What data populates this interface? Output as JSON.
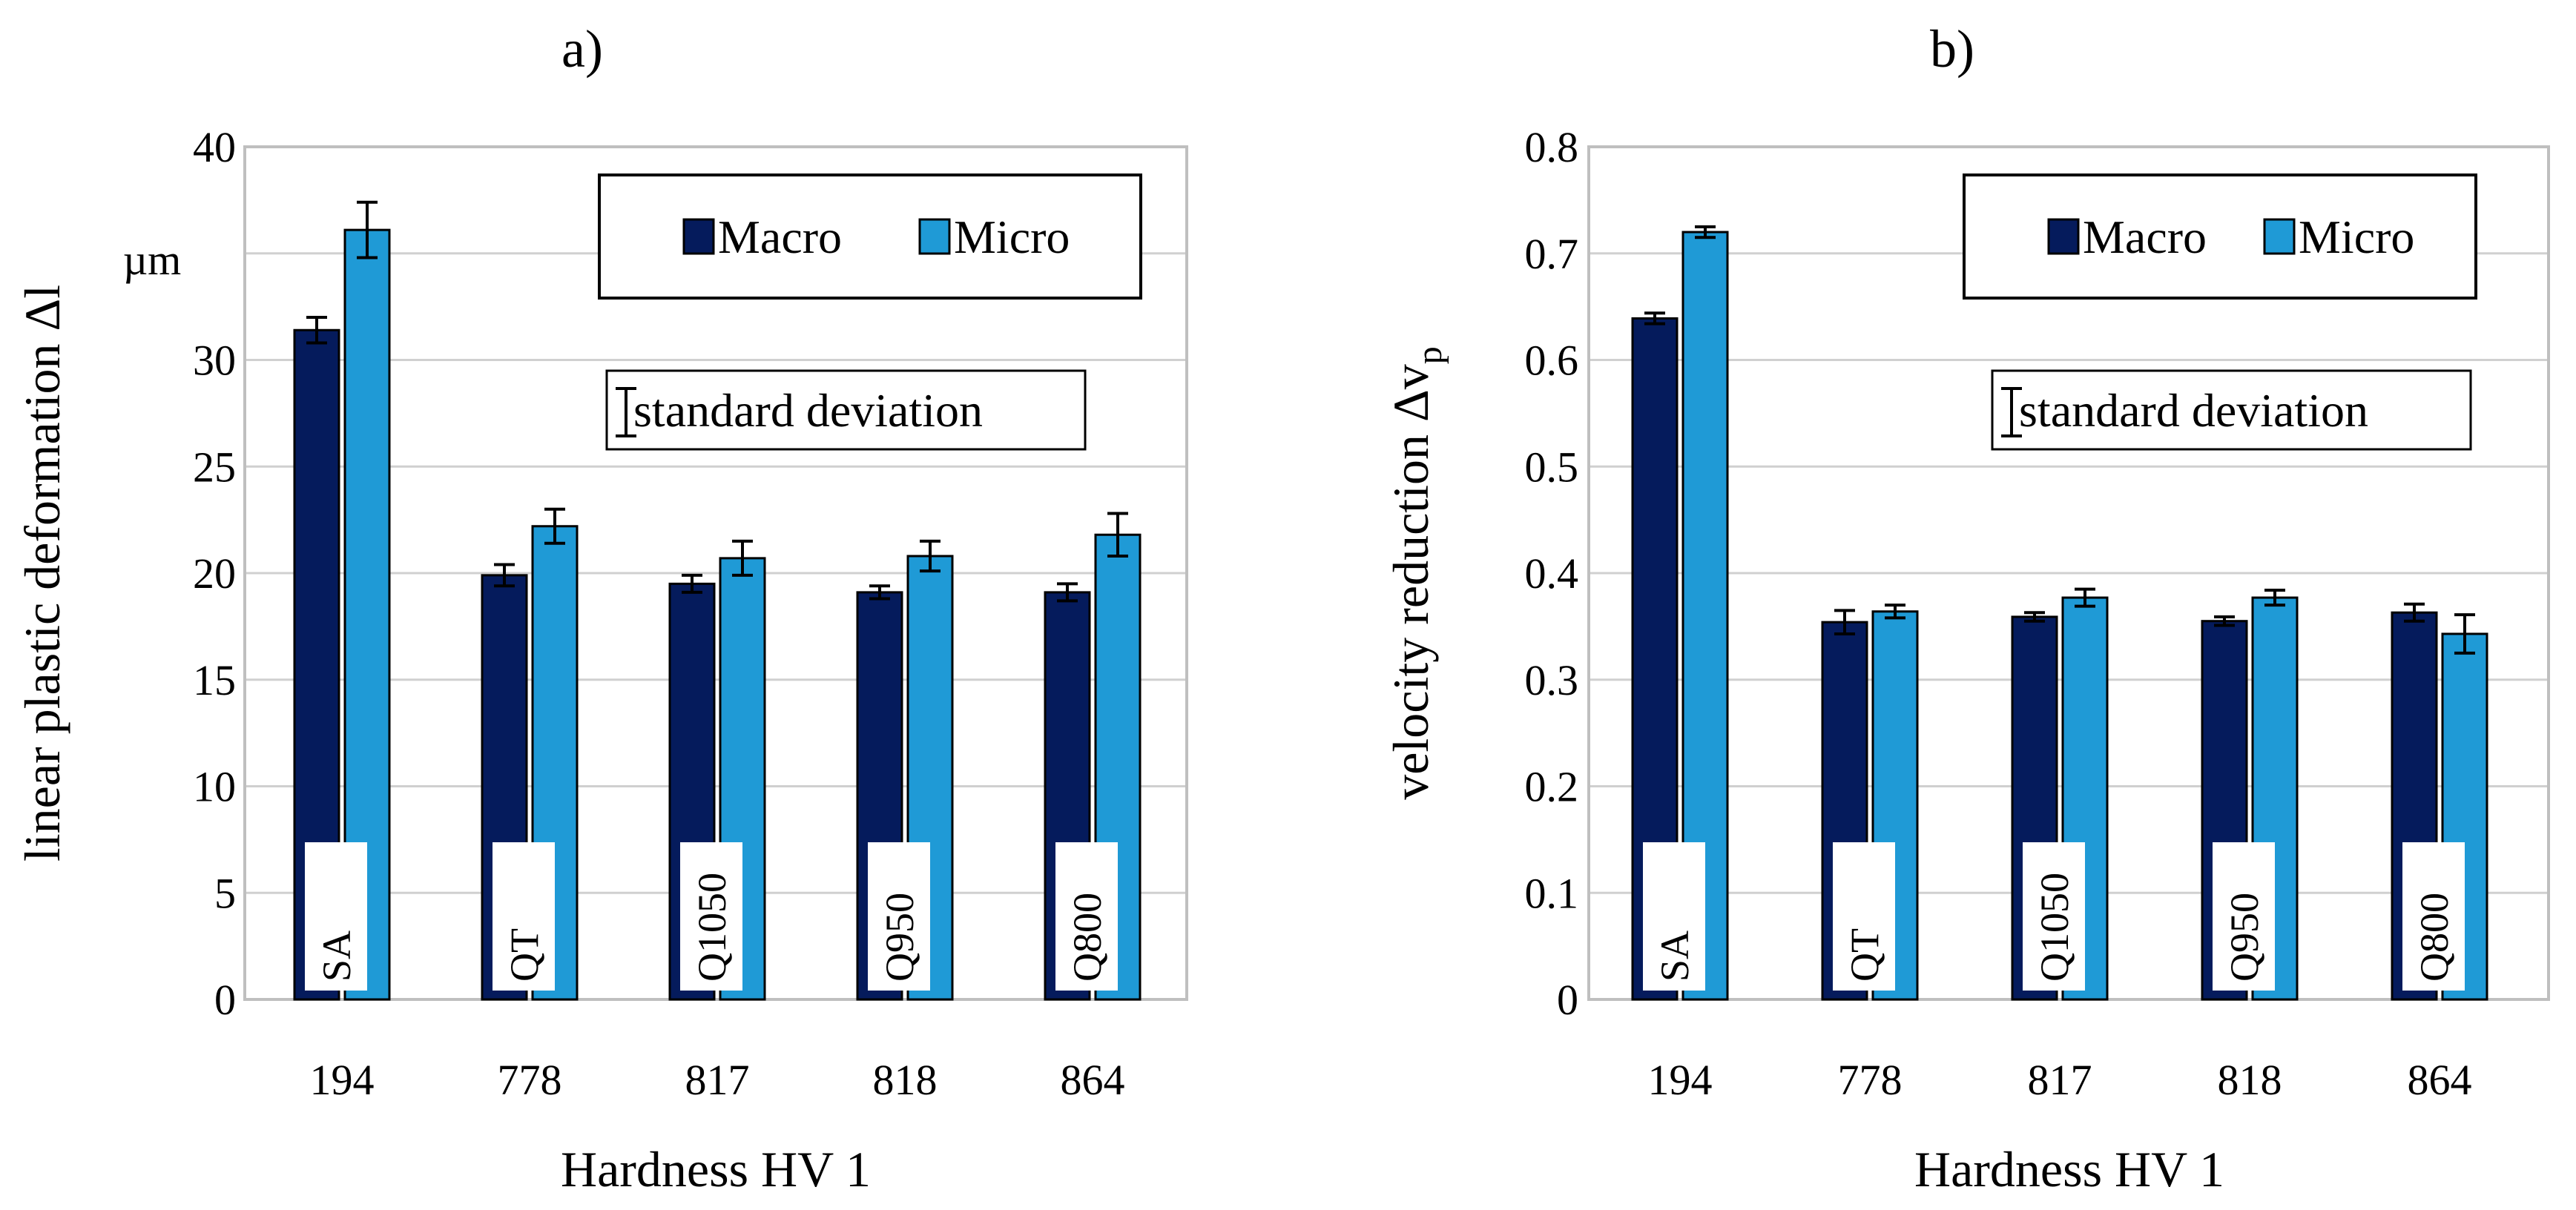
{
  "colors": {
    "macro": "#051b5c",
    "micro": "#1f9ad6",
    "grid": "#d0d0d0",
    "frame": "#bfbfbf"
  },
  "chart_data": [
    {
      "type": "bar",
      "panel_label": "a)",
      "title": "",
      "xlabel": "Hardness HV 1",
      "ylabel": "linear plastic deformation Δl",
      "ylabel_unit": "µm",
      "ylim": [
        0,
        40
      ],
      "yticks": [
        0,
        5,
        10,
        15,
        20,
        25,
        30,
        35,
        40
      ],
      "ytick_labels": [
        "0",
        "5",
        "10",
        "15",
        "20",
        "25",
        "30",
        "",
        "40"
      ],
      "categories": [
        "194",
        "778",
        "817",
        "818",
        "864"
      ],
      "category_labels": [
        "SA",
        "QT",
        "Q1050",
        "Q950",
        "Q800"
      ],
      "series": [
        {
          "name": "Macro",
          "values": [
            31.4,
            19.9,
            19.5,
            19.1,
            19.1
          ],
          "errors": [
            0.6,
            0.5,
            0.4,
            0.3,
            0.4
          ]
        },
        {
          "name": "Micro",
          "values": [
            36.1,
            22.2,
            20.7,
            20.8,
            21.8
          ],
          "errors": [
            1.3,
            0.8,
            0.8,
            0.7,
            1.0
          ]
        }
      ],
      "legend": [
        "Macro",
        "Micro"
      ],
      "legend_position": "top-right",
      "annotation": "standard deviation",
      "grid": true
    },
    {
      "type": "bar",
      "panel_label": "b)",
      "title": "",
      "xlabel": "Hardness HV 1",
      "ylabel": "velocity reduction Δv",
      "ylabel_subscript": "p",
      "ylim": [
        0,
        0.8
      ],
      "yticks": [
        0,
        0.1,
        0.2,
        0.3,
        0.4,
        0.5,
        0.6,
        0.7,
        0.8
      ],
      "ytick_labels": [
        "0",
        "0.1",
        "0.2",
        "0.3",
        "0.4",
        "0.5",
        "0.6",
        "0.7",
        "0.8"
      ],
      "categories": [
        "194",
        "778",
        "817",
        "818",
        "864"
      ],
      "category_labels": [
        "SA",
        "QT",
        "Q1050",
        "Q950",
        "Q800"
      ],
      "series": [
        {
          "name": "Macro",
          "values": [
            0.639,
            0.354,
            0.359,
            0.355,
            0.363
          ],
          "errors": [
            0.005,
            0.011,
            0.004,
            0.004,
            0.008
          ]
        },
        {
          "name": "Micro",
          "values": [
            0.72,
            0.364,
            0.377,
            0.377,
            0.343
          ],
          "errors": [
            0.005,
            0.006,
            0.008,
            0.007,
            0.018
          ]
        }
      ],
      "legend": [
        "Macro",
        "Micro"
      ],
      "legend_position": "top-right",
      "annotation": "standard deviation",
      "grid": true
    }
  ]
}
